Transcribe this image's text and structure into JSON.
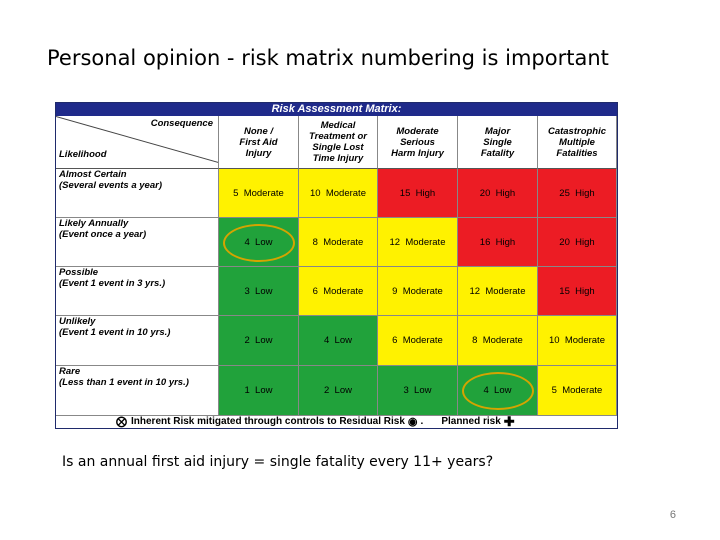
{
  "slide": {
    "title": "Personal opinion - risk matrix numbering is important",
    "question": "Is an annual first aid injury = single fatality every 11+ years?",
    "page_number": "6"
  },
  "matrix": {
    "title": "Risk Assessment Matrix:",
    "corner_consequence": "Consequence",
    "corner_likelihood": "Likelihood",
    "consequences": [
      [
        "None /",
        "First Aid",
        "Injury"
      ],
      [
        "Medical",
        "Treatment or",
        "Single Lost",
        "Time Injury"
      ],
      [
        "Moderate",
        "Serious",
        "Harm Injury"
      ],
      [
        "Major",
        "Single",
        "Fatality"
      ],
      [
        "Catastrophic",
        "Multiple",
        "Fatalities"
      ]
    ],
    "rows": [
      {
        "label": "Almost Certain",
        "sub": "(Several events a year)",
        "cells": [
          {
            "text": "5  Moderate",
            "color": "yellow"
          },
          {
            "text": "10  Moderate",
            "color": "yellow"
          },
          {
            "text": "15  High",
            "color": "red"
          },
          {
            "text": "20  High",
            "color": "red"
          },
          {
            "text": "25  High",
            "color": "red"
          }
        ]
      },
      {
        "label": "Likely Annually",
        "sub": "(Event once a year)",
        "cells": [
          {
            "text": "4  Low",
            "color": "green",
            "circled": true
          },
          {
            "text": "8  Moderate",
            "color": "yellow"
          },
          {
            "text": "12  Moderate",
            "color": "yellow"
          },
          {
            "text": "16  High",
            "color": "red"
          },
          {
            "text": "20  High",
            "color": "red"
          }
        ]
      },
      {
        "label": "Possible",
        "sub": "(Event 1 event in 3 yrs.)",
        "cells": [
          {
            "text": "3  Low",
            "color": "green"
          },
          {
            "text": "6  Moderate",
            "color": "yellow"
          },
          {
            "text": "9  Moderate",
            "color": "yellow"
          },
          {
            "text": "12  Moderate",
            "color": "yellow"
          },
          {
            "text": "15  High",
            "color": "red"
          }
        ]
      },
      {
        "label": "Unlikely",
        "sub": "(Event 1 event in 10 yrs.)",
        "cells": [
          {
            "text": "2  Low",
            "color": "green"
          },
          {
            "text": "4  Low",
            "color": "green"
          },
          {
            "text": "6  Moderate",
            "color": "yellow"
          },
          {
            "text": "8  Moderate",
            "color": "yellow"
          },
          {
            "text": "10  Moderate",
            "color": "yellow"
          }
        ]
      },
      {
        "label": "Rare",
        "sub": "(Less than 1 event in 10 yrs.)",
        "cells": [
          {
            "text": "1  Low",
            "color": "green"
          },
          {
            "text": "2  Low",
            "color": "green"
          },
          {
            "text": "3  Low",
            "color": "green"
          },
          {
            "text": "4  Low",
            "color": "green",
            "circled": true
          },
          {
            "text": "5  Moderate",
            "color": "yellow"
          }
        ]
      }
    ],
    "legend": {
      "inherent_icon": "circle-x-icon",
      "inherent_text": "Inherent Risk mitigated through controls to Residual Risk",
      "residual_icon": "circle-dot-icon",
      "separator": ".",
      "planned_text": "Planned risk",
      "planned_icon": "plus-icon"
    },
    "colors": {
      "green": "#21a23b",
      "yellow": "#fff200",
      "red": "#ec1c24",
      "header_bar": "#1f2a8a",
      "highlight_ring": "#d4a400"
    }
  }
}
